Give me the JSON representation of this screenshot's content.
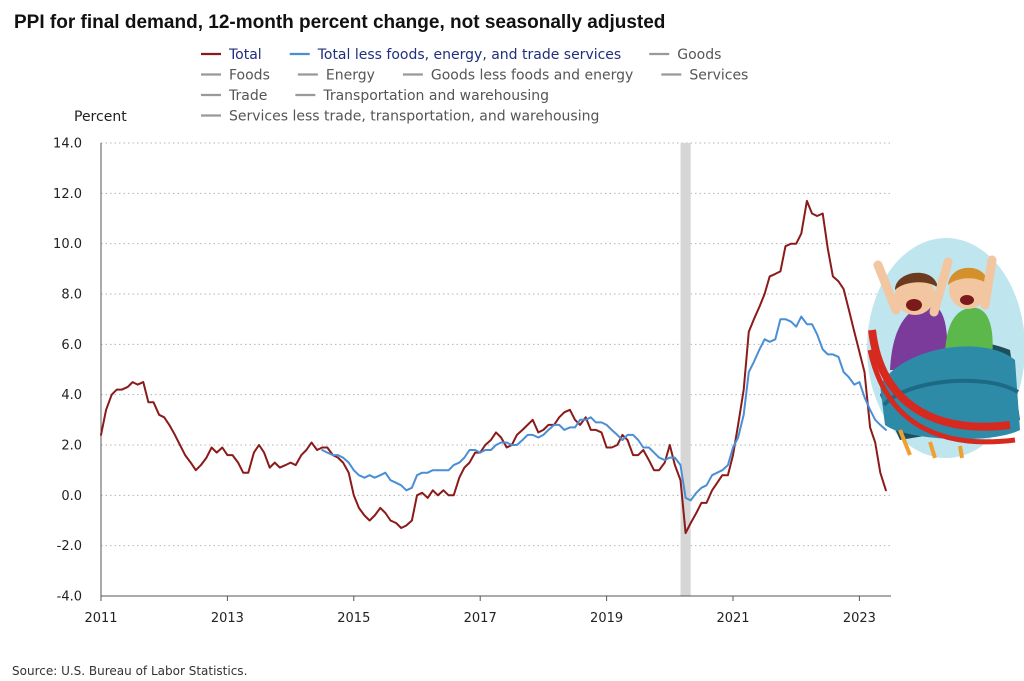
{
  "title": "PPI for final demand, 12-month percent change, not seasonally adjusted",
  "source": "Source: U.S. Bureau of Labor Statistics.",
  "illustration": {
    "name": "roller-coaster-riders-cartoon"
  },
  "chart_data": {
    "type": "line",
    "ylabel": "Percent",
    "xlabel": "",
    "ylim": [
      -4.0,
      14.0
    ],
    "yticks": [
      "-4.0",
      "-2.0",
      "0.0",
      "2.0",
      "4.0",
      "6.0",
      "8.0",
      "10.0",
      "12.0",
      "14.0"
    ],
    "xlim": [
      2011.0,
      2023.5
    ],
    "xticks": [
      "2011",
      "2013",
      "2015",
      "2017",
      "2019",
      "2021",
      "2023"
    ],
    "grid": "horizontal dotted",
    "recession_shading": [
      2020.17,
      2020.33
    ],
    "legend": {
      "placement": "top",
      "entries": [
        {
          "label": "Total",
          "color": "#8b1a1a"
        },
        {
          "label": "Total less foods, energy, and trade services",
          "color": "#4a8fd6"
        },
        {
          "label": "Goods",
          "color": "#999999"
        },
        {
          "label": "Foods",
          "color": "#999999"
        },
        {
          "label": "Energy",
          "color": "#999999"
        },
        {
          "label": "Goods less foods and energy",
          "color": "#999999"
        },
        {
          "label": "Services",
          "color": "#999999"
        },
        {
          "label": "Trade",
          "color": "#999999"
        },
        {
          "label": "Transportation and warehousing",
          "color": "#999999"
        },
        {
          "label": "Services less trade, transportation, and warehousing",
          "color": "#999999"
        }
      ]
    },
    "series": [
      {
        "name": "Total",
        "color": "#8b1a1a",
        "points": [
          [
            2011.0,
            2.4
          ],
          [
            2011.08,
            3.4
          ],
          [
            2011.17,
            4.0
          ],
          [
            2011.25,
            4.2
          ],
          [
            2011.33,
            4.2
          ],
          [
            2011.42,
            4.3
          ],
          [
            2011.5,
            4.5
          ],
          [
            2011.58,
            4.4
          ],
          [
            2011.67,
            4.5
          ],
          [
            2011.75,
            3.7
          ],
          [
            2011.83,
            3.7
          ],
          [
            2011.92,
            3.2
          ],
          [
            2012.0,
            3.1
          ],
          [
            2012.08,
            2.8
          ],
          [
            2012.17,
            2.4
          ],
          [
            2012.25,
            2.0
          ],
          [
            2012.33,
            1.6
          ],
          [
            2012.42,
            1.3
          ],
          [
            2012.5,
            1.0
          ],
          [
            2012.58,
            1.2
          ],
          [
            2012.67,
            1.5
          ],
          [
            2012.75,
            1.9
          ],
          [
            2012.83,
            1.7
          ],
          [
            2012.92,
            1.9
          ],
          [
            2013.0,
            1.6
          ],
          [
            2013.08,
            1.6
          ],
          [
            2013.17,
            1.3
          ],
          [
            2013.25,
            0.9
          ],
          [
            2013.33,
            0.9
          ],
          [
            2013.42,
            1.7
          ],
          [
            2013.5,
            2.0
          ],
          [
            2013.58,
            1.7
          ],
          [
            2013.67,
            1.1
          ],
          [
            2013.75,
            1.3
          ],
          [
            2013.83,
            1.1
          ],
          [
            2013.92,
            1.2
          ],
          [
            2014.0,
            1.3
          ],
          [
            2014.08,
            1.2
          ],
          [
            2014.17,
            1.6
          ],
          [
            2014.25,
            1.8
          ],
          [
            2014.33,
            2.1
          ],
          [
            2014.42,
            1.8
          ],
          [
            2014.5,
            1.9
          ],
          [
            2014.58,
            1.9
          ],
          [
            2014.67,
            1.6
          ],
          [
            2014.75,
            1.5
          ],
          [
            2014.83,
            1.3
          ],
          [
            2014.92,
            0.9
          ],
          [
            2015.0,
            0.0
          ],
          [
            2015.08,
            -0.5
          ],
          [
            2015.17,
            -0.8
          ],
          [
            2015.25,
            -1.0
          ],
          [
            2015.33,
            -0.8
          ],
          [
            2015.42,
            -0.5
          ],
          [
            2015.5,
            -0.7
          ],
          [
            2015.58,
            -1.0
          ],
          [
            2015.67,
            -1.1
          ],
          [
            2015.75,
            -1.3
          ],
          [
            2015.83,
            -1.2
          ],
          [
            2015.92,
            -1.0
          ],
          [
            2016.0,
            0.0
          ],
          [
            2016.08,
            0.1
          ],
          [
            2016.17,
            -0.1
          ],
          [
            2016.25,
            0.2
          ],
          [
            2016.33,
            0.0
          ],
          [
            2016.42,
            0.2
          ],
          [
            2016.5,
            0.0
          ],
          [
            2016.58,
            0.0
          ],
          [
            2016.67,
            0.7
          ],
          [
            2016.75,
            1.1
          ],
          [
            2016.83,
            1.3
          ],
          [
            2016.92,
            1.7
          ],
          [
            2017.0,
            1.7
          ],
          [
            2017.08,
            2.0
          ],
          [
            2017.17,
            2.2
          ],
          [
            2017.25,
            2.5
          ],
          [
            2017.33,
            2.3
          ],
          [
            2017.42,
            1.9
          ],
          [
            2017.5,
            2.0
          ],
          [
            2017.58,
            2.4
          ],
          [
            2017.67,
            2.6
          ],
          [
            2017.75,
            2.8
          ],
          [
            2017.83,
            3.0
          ],
          [
            2017.92,
            2.5
          ],
          [
            2018.0,
            2.6
          ],
          [
            2018.08,
            2.8
          ],
          [
            2018.17,
            2.8
          ],
          [
            2018.25,
            3.1
          ],
          [
            2018.33,
            3.3
          ],
          [
            2018.42,
            3.4
          ],
          [
            2018.5,
            3.0
          ],
          [
            2018.58,
            2.8
          ],
          [
            2018.67,
            3.1
          ],
          [
            2018.75,
            2.6
          ],
          [
            2018.83,
            2.6
          ],
          [
            2018.92,
            2.5
          ],
          [
            2019.0,
            1.9
          ],
          [
            2019.08,
            1.9
          ],
          [
            2019.17,
            2.0
          ],
          [
            2019.25,
            2.4
          ],
          [
            2019.33,
            2.2
          ],
          [
            2019.42,
            1.6
          ],
          [
            2019.5,
            1.6
          ],
          [
            2019.58,
            1.8
          ],
          [
            2019.67,
            1.4
          ],
          [
            2019.75,
            1.0
          ],
          [
            2019.83,
            1.0
          ],
          [
            2019.92,
            1.3
          ],
          [
            2020.0,
            2.0
          ],
          [
            2020.08,
            1.2
          ],
          [
            2020.17,
            0.6
          ],
          [
            2020.25,
            -1.5
          ],
          [
            2020.33,
            -1.1
          ],
          [
            2020.42,
            -0.7
          ],
          [
            2020.5,
            -0.3
          ],
          [
            2020.58,
            -0.3
          ],
          [
            2020.67,
            0.2
          ],
          [
            2020.75,
            0.5
          ],
          [
            2020.83,
            0.8
          ],
          [
            2020.92,
            0.8
          ],
          [
            2021.0,
            1.6
          ],
          [
            2021.08,
            2.8
          ],
          [
            2021.17,
            4.2
          ],
          [
            2021.25,
            6.5
          ],
          [
            2021.33,
            7.0
          ],
          [
            2021.42,
            7.5
          ],
          [
            2021.5,
            8.0
          ],
          [
            2021.58,
            8.7
          ],
          [
            2021.67,
            8.8
          ],
          [
            2021.75,
            8.9
          ],
          [
            2021.83,
            9.9
          ],
          [
            2021.92,
            10.0
          ],
          [
            2022.0,
            10.0
          ],
          [
            2022.08,
            10.4
          ],
          [
            2022.17,
            11.7
          ],
          [
            2022.25,
            11.2
          ],
          [
            2022.33,
            11.1
          ],
          [
            2022.42,
            11.2
          ],
          [
            2022.5,
            9.8
          ],
          [
            2022.58,
            8.7
          ],
          [
            2022.67,
            8.5
          ],
          [
            2022.75,
            8.2
          ],
          [
            2022.83,
            7.4
          ],
          [
            2022.92,
            6.5
          ],
          [
            2023.0,
            5.7
          ],
          [
            2023.08,
            4.9
          ],
          [
            2023.17,
            2.7
          ],
          [
            2023.25,
            2.1
          ],
          [
            2023.33,
            0.9
          ],
          [
            2023.42,
            0.2
          ]
        ]
      },
      {
        "name": "Total less foods, energy, and trade services",
        "color": "#4a8fd6",
        "points": [
          [
            2014.5,
            1.8
          ],
          [
            2014.58,
            1.7
          ],
          [
            2014.67,
            1.6
          ],
          [
            2014.75,
            1.6
          ],
          [
            2014.83,
            1.5
          ],
          [
            2014.92,
            1.3
          ],
          [
            2015.0,
            1.0
          ],
          [
            2015.08,
            0.8
          ],
          [
            2015.17,
            0.7
          ],
          [
            2015.25,
            0.8
          ],
          [
            2015.33,
            0.7
          ],
          [
            2015.42,
            0.8
          ],
          [
            2015.5,
            0.9
          ],
          [
            2015.58,
            0.6
          ],
          [
            2015.67,
            0.5
          ],
          [
            2015.75,
            0.4
          ],
          [
            2015.83,
            0.2
          ],
          [
            2015.92,
            0.3
          ],
          [
            2016.0,
            0.8
          ],
          [
            2016.08,
            0.9
          ],
          [
            2016.17,
            0.9
          ],
          [
            2016.25,
            1.0
          ],
          [
            2016.33,
            1.0
          ],
          [
            2016.42,
            1.0
          ],
          [
            2016.5,
            1.0
          ],
          [
            2016.58,
            1.2
          ],
          [
            2016.67,
            1.3
          ],
          [
            2016.75,
            1.5
          ],
          [
            2016.83,
            1.8
          ],
          [
            2016.92,
            1.8
          ],
          [
            2017.0,
            1.7
          ],
          [
            2017.08,
            1.8
          ],
          [
            2017.17,
            1.8
          ],
          [
            2017.25,
            2.0
          ],
          [
            2017.33,
            2.1
          ],
          [
            2017.42,
            2.1
          ],
          [
            2017.5,
            2.0
          ],
          [
            2017.58,
            2.0
          ],
          [
            2017.67,
            2.2
          ],
          [
            2017.75,
            2.4
          ],
          [
            2017.83,
            2.4
          ],
          [
            2017.92,
            2.3
          ],
          [
            2018.0,
            2.4
          ],
          [
            2018.08,
            2.6
          ],
          [
            2018.17,
            2.8
          ],
          [
            2018.25,
            2.8
          ],
          [
            2018.33,
            2.6
          ],
          [
            2018.42,
            2.7
          ],
          [
            2018.5,
            2.7
          ],
          [
            2018.58,
            3.0
          ],
          [
            2018.67,
            3.0
          ],
          [
            2018.75,
            3.1
          ],
          [
            2018.83,
            2.9
          ],
          [
            2018.92,
            2.9
          ],
          [
            2019.0,
            2.8
          ],
          [
            2019.08,
            2.6
          ],
          [
            2019.17,
            2.4
          ],
          [
            2019.25,
            2.2
          ],
          [
            2019.33,
            2.4
          ],
          [
            2019.42,
            2.4
          ],
          [
            2019.5,
            2.2
          ],
          [
            2019.58,
            1.9
          ],
          [
            2019.67,
            1.9
          ],
          [
            2019.75,
            1.7
          ],
          [
            2019.83,
            1.5
          ],
          [
            2019.92,
            1.4
          ],
          [
            2020.0,
            1.5
          ],
          [
            2020.08,
            1.5
          ],
          [
            2020.17,
            1.2
          ],
          [
            2020.25,
            -0.1
          ],
          [
            2020.33,
            -0.2
          ],
          [
            2020.42,
            0.1
          ],
          [
            2020.5,
            0.3
          ],
          [
            2020.58,
            0.4
          ],
          [
            2020.67,
            0.8
          ],
          [
            2020.75,
            0.9
          ],
          [
            2020.83,
            1.0
          ],
          [
            2020.92,
            1.2
          ],
          [
            2021.0,
            1.9
          ],
          [
            2021.08,
            2.3
          ],
          [
            2021.17,
            3.2
          ],
          [
            2021.25,
            4.9
          ],
          [
            2021.33,
            5.3
          ],
          [
            2021.42,
            5.8
          ],
          [
            2021.5,
            6.2
          ],
          [
            2021.58,
            6.1
          ],
          [
            2021.67,
            6.2
          ],
          [
            2021.75,
            7.0
          ],
          [
            2021.83,
            7.0
          ],
          [
            2021.92,
            6.9
          ],
          [
            2022.0,
            6.7
          ],
          [
            2022.08,
            7.1
          ],
          [
            2022.17,
            6.8
          ],
          [
            2022.25,
            6.8
          ],
          [
            2022.33,
            6.4
          ],
          [
            2022.42,
            5.8
          ],
          [
            2022.5,
            5.6
          ],
          [
            2022.58,
            5.6
          ],
          [
            2022.67,
            5.5
          ],
          [
            2022.75,
            4.9
          ],
          [
            2022.83,
            4.7
          ],
          [
            2022.92,
            4.4
          ],
          [
            2023.0,
            4.5
          ],
          [
            2023.08,
            3.9
          ],
          [
            2023.17,
            3.4
          ],
          [
            2023.25,
            3.0
          ],
          [
            2023.33,
            2.8
          ],
          [
            2023.42,
            2.6
          ]
        ]
      }
    ]
  }
}
